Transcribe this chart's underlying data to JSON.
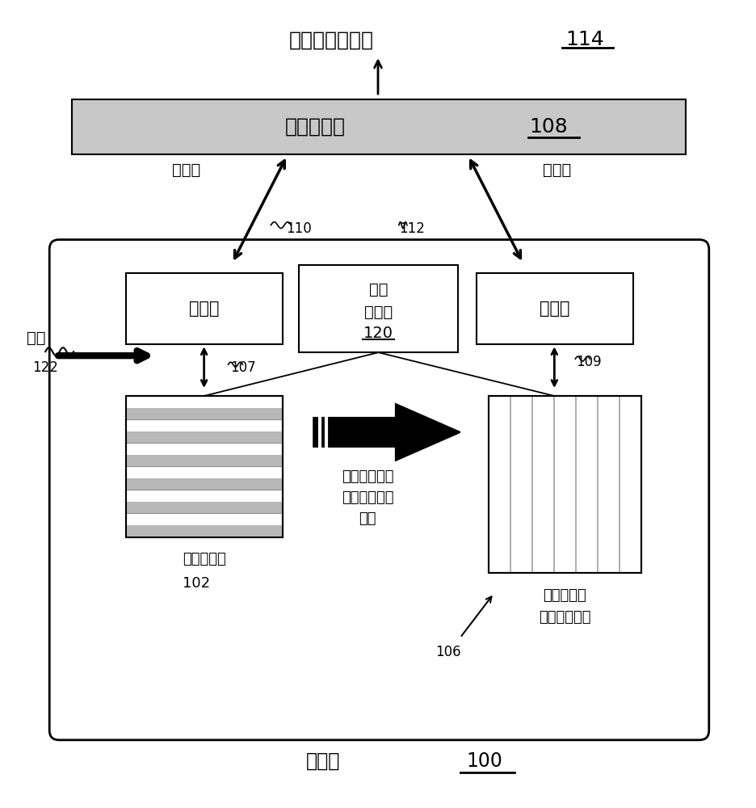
{
  "title_text": "合并的查询结果",
  "title_num": "114",
  "query_processor_text": "查询处理器",
  "query_processor_num": "108",
  "row_engine_text": "行引擎",
  "col_engine_text": "列引擎",
  "data_manager_line1": "数据",
  "data_manager_line2": "管理器",
  "data_manager_num": "120",
  "row_search_text": "行搜索",
  "col_search_text": "列搜索",
  "insert_text": "插入",
  "label_110": "110",
  "label_112": "112",
  "label_107": "107",
  "label_109": "109",
  "label_122": "122",
  "label_106": "106",
  "row_partition_text": "内存行分区",
  "row_partition_num": "102",
  "col_partition_line1": "内存列分区",
  "col_partition_line2": "（被压缩的）",
  "async_line1": "到列表的异步",
  "async_line2": "事务批量数据",
  "async_line3": "移动",
  "hybrid_table_text": "混合表",
  "hybrid_table_num": "100",
  "bg_color": "#ffffff",
  "qp_box_bg": "#c8c8c8",
  "white": "#ffffff",
  "black": "#000000",
  "stripe_gray": "#b8b8b8",
  "col_line_gray": "#a0a0a0"
}
